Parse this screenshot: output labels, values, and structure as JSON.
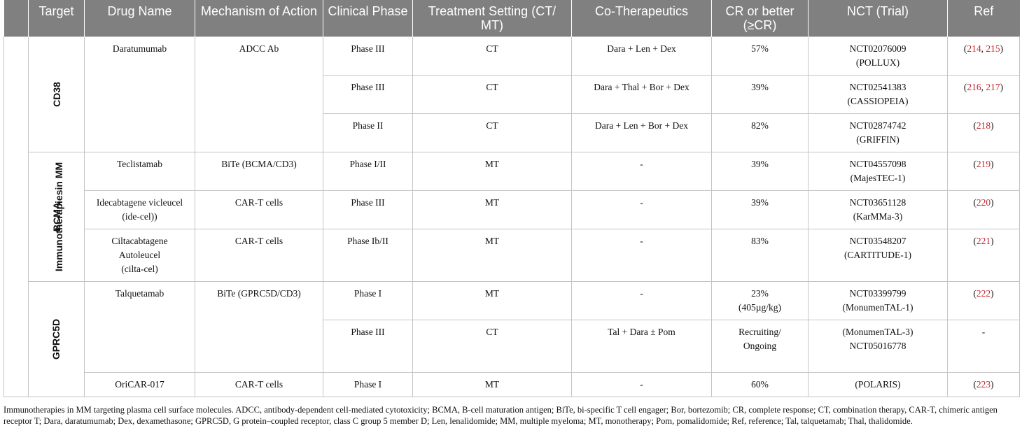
{
  "headers": [
    "",
    "Target",
    "Drug Name",
    "Mechanism of Action",
    "Clinical Phase",
    "Treatment Setting (CT/ MT)",
    "Co-Therapeutics",
    "CR or better (≥CR)",
    "NCT (Trial)",
    "Ref"
  ],
  "outer_group": "Immunotherapiesin MM",
  "targets": [
    "CD38",
    "BCMA",
    "GPRC5D"
  ],
  "rows": [
    {
      "drug": "Daratumumab",
      "mechanism": "ADCC Ab",
      "phase": "Phase III",
      "setting": "CT",
      "co": "Dara + Len + Dex",
      "cr": "57%",
      "nct1": "NCT02076009",
      "nct2": "(POLLUX)",
      "refs": [
        "214",
        "215"
      ]
    },
    {
      "phase": "Phase III",
      "setting": "CT",
      "co": "Dara + Thal + Bor + Dex",
      "cr": "39%",
      "nct1": "NCT02541383",
      "nct2": "(CASSIOPEIA)",
      "refs": [
        "216",
        "217"
      ]
    },
    {
      "phase": "Phase II",
      "setting": "CT",
      "co": "Dara + Len + Bor + Dex",
      "cr": "82%",
      "nct1": "NCT02874742",
      "nct2": "(GRIFFIN)",
      "refs": [
        "218"
      ]
    },
    {
      "drug": "Teclistamab",
      "mechanism": "BiTe (BCMA/CD3)",
      "phase": "Phase I/II",
      "setting": "MT",
      "co": "-",
      "cr": "39%",
      "nct1": "NCT04557098",
      "nct2": "(MajesTEC-1)",
      "refs": [
        "219"
      ]
    },
    {
      "drug1": "Idecabtagene vicleucel",
      "drug2": "(ide-cel))",
      "mechanism": "CAR-T cells",
      "phase": "Phase III",
      "setting": "MT",
      "co": "-",
      "cr": "39%",
      "nct1": "NCT03651128",
      "nct2": "(KarMMa-3)",
      "refs": [
        "220"
      ]
    },
    {
      "drug1": "Ciltacabtagene",
      "drug2": "Autoleucel",
      "drug3": "(cilta-cel)",
      "mechanism": "CAR-T cells",
      "phase": "Phase Ib/II",
      "setting": "MT",
      "co": "-",
      "cr": "83%",
      "nct1": "NCT03548207",
      "nct2": "(CARTITUDE-1)",
      "refs": [
        "221"
      ]
    },
    {
      "drug": "Talquetamab",
      "mechanism": "BiTe (GPRC5D/CD3)",
      "phase": "Phase I",
      "setting": "MT",
      "co": "-",
      "cr1": "23%",
      "cr2": "(405µg/kg)",
      "nct1": "NCT03399799",
      "nct2": "(MonumenTAL-1)",
      "refs": [
        "222"
      ]
    },
    {
      "phase": "Phase III",
      "setting": "CT",
      "co": "Tal + Dara ± Pom",
      "cr1": "Recruiting/",
      "cr2": "Ongoing",
      "nct1": "(MonumenTAL-3)",
      "nct2": "NCT05016778",
      "ref_text": "-"
    },
    {
      "drug": "OriCAR-017",
      "mechanism": "CAR-T cells",
      "phase": "Phase I",
      "setting": "MT",
      "co": "-",
      "cr": "60%",
      "nct1": "(POLARIS)",
      "refs": [
        "223"
      ]
    }
  ],
  "caption": "Immunotherapies in MM targeting plasma cell surface molecules. ADCC, antibody-dependent cell-mediated cytotoxicity; BCMA, B-cell maturation antigen; BiTe, bi-specific T cell engager; Bor, bortezomib; CR, complete response; CT, combination therapy, CAR-T, chimeric antigen receptor T; Dara, daratumumab; Dex, dexamethasone; GPRC5D, G protein–coupled receptor, class C group 5 member D; Len, lenalidomide; MM, multiple myeloma; MT, monotherapy; Pom, pomalidomide; Ref, reference; Tal, talquetamab; Thal, thalidomide.",
  "colors": {
    "header_bg": "#808080",
    "header_text": "#ffffff",
    "ref_link": "#c0262d",
    "grid": "#c4c4c4"
  }
}
